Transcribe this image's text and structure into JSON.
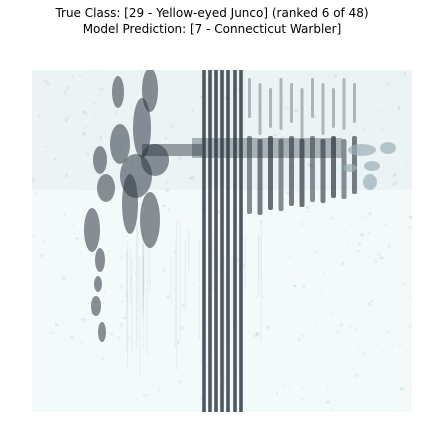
{
  "chart_data": {
    "type": "heatmap",
    "title": [
      "True Class: [29 - Yellow-eyed Junco] (ranked 6 of 48)",
      "Model Prediction: [7 - Connecticut Warbler]"
    ],
    "colormap": "bone_r",
    "axes_visible": false,
    "grid": false,
    "colors": {
      "background": "#f4f9fa",
      "low": "#e6eff1",
      "mid": "#9aaeb8",
      "high": "#2c3640"
    }
  }
}
